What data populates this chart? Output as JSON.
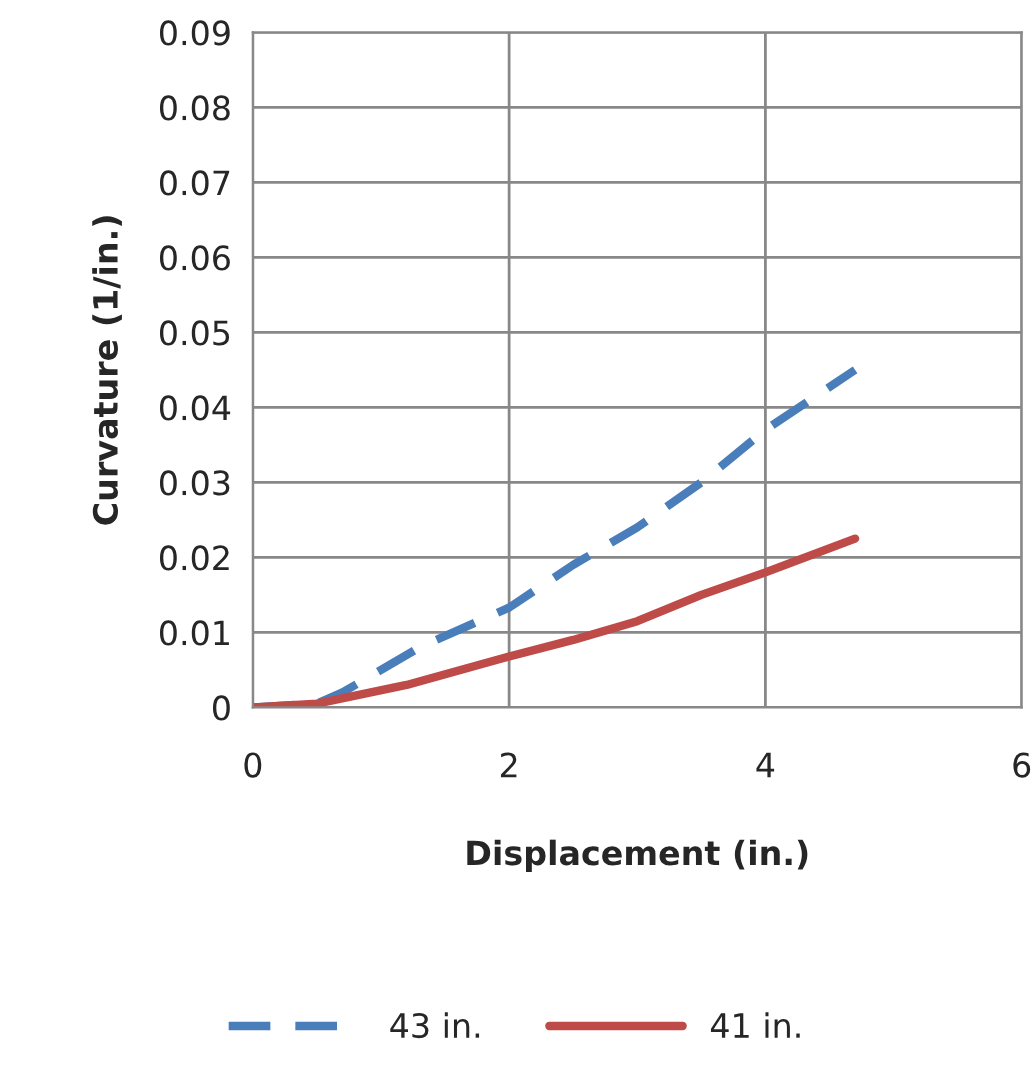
{
  "chart_data": {
    "type": "line",
    "xlabel": "Displacement (in.)",
    "ylabel": "Curvature (1/in.)",
    "xlim": [
      0,
      6
    ],
    "xticks": [
      0,
      2,
      4,
      6
    ],
    "ylim": [
      0,
      0.09
    ],
    "yticks": [
      0,
      0.01,
      0.02,
      0.03,
      0.04,
      0.05,
      0.06,
      0.07,
      0.08,
      0.09
    ],
    "grid": true,
    "legend": "bottom",
    "marker": "none",
    "series": [
      {
        "name": "43 in.",
        "color": "#4a7ebb",
        "line_style": "dashed",
        "x": [
          0,
          0.5,
          0.7,
          1.3,
          2,
          2.5,
          3,
          3.5,
          4,
          4.7
        ],
        "values": [
          0,
          0.0005,
          0.002,
          0.008,
          0.0133,
          0.019,
          0.024,
          0.03,
          0.037,
          0.045
        ]
      },
      {
        "name": "41 in.",
        "color": "#be4b48",
        "line_style": "solid",
        "x": [
          0,
          0.5,
          1.2,
          2,
          2.5,
          3,
          3.5,
          4,
          4.7
        ],
        "values": [
          0,
          0.0005,
          0.003,
          0.0068,
          0.009,
          0.0115,
          0.015,
          0.018,
          0.0225
        ]
      }
    ]
  }
}
